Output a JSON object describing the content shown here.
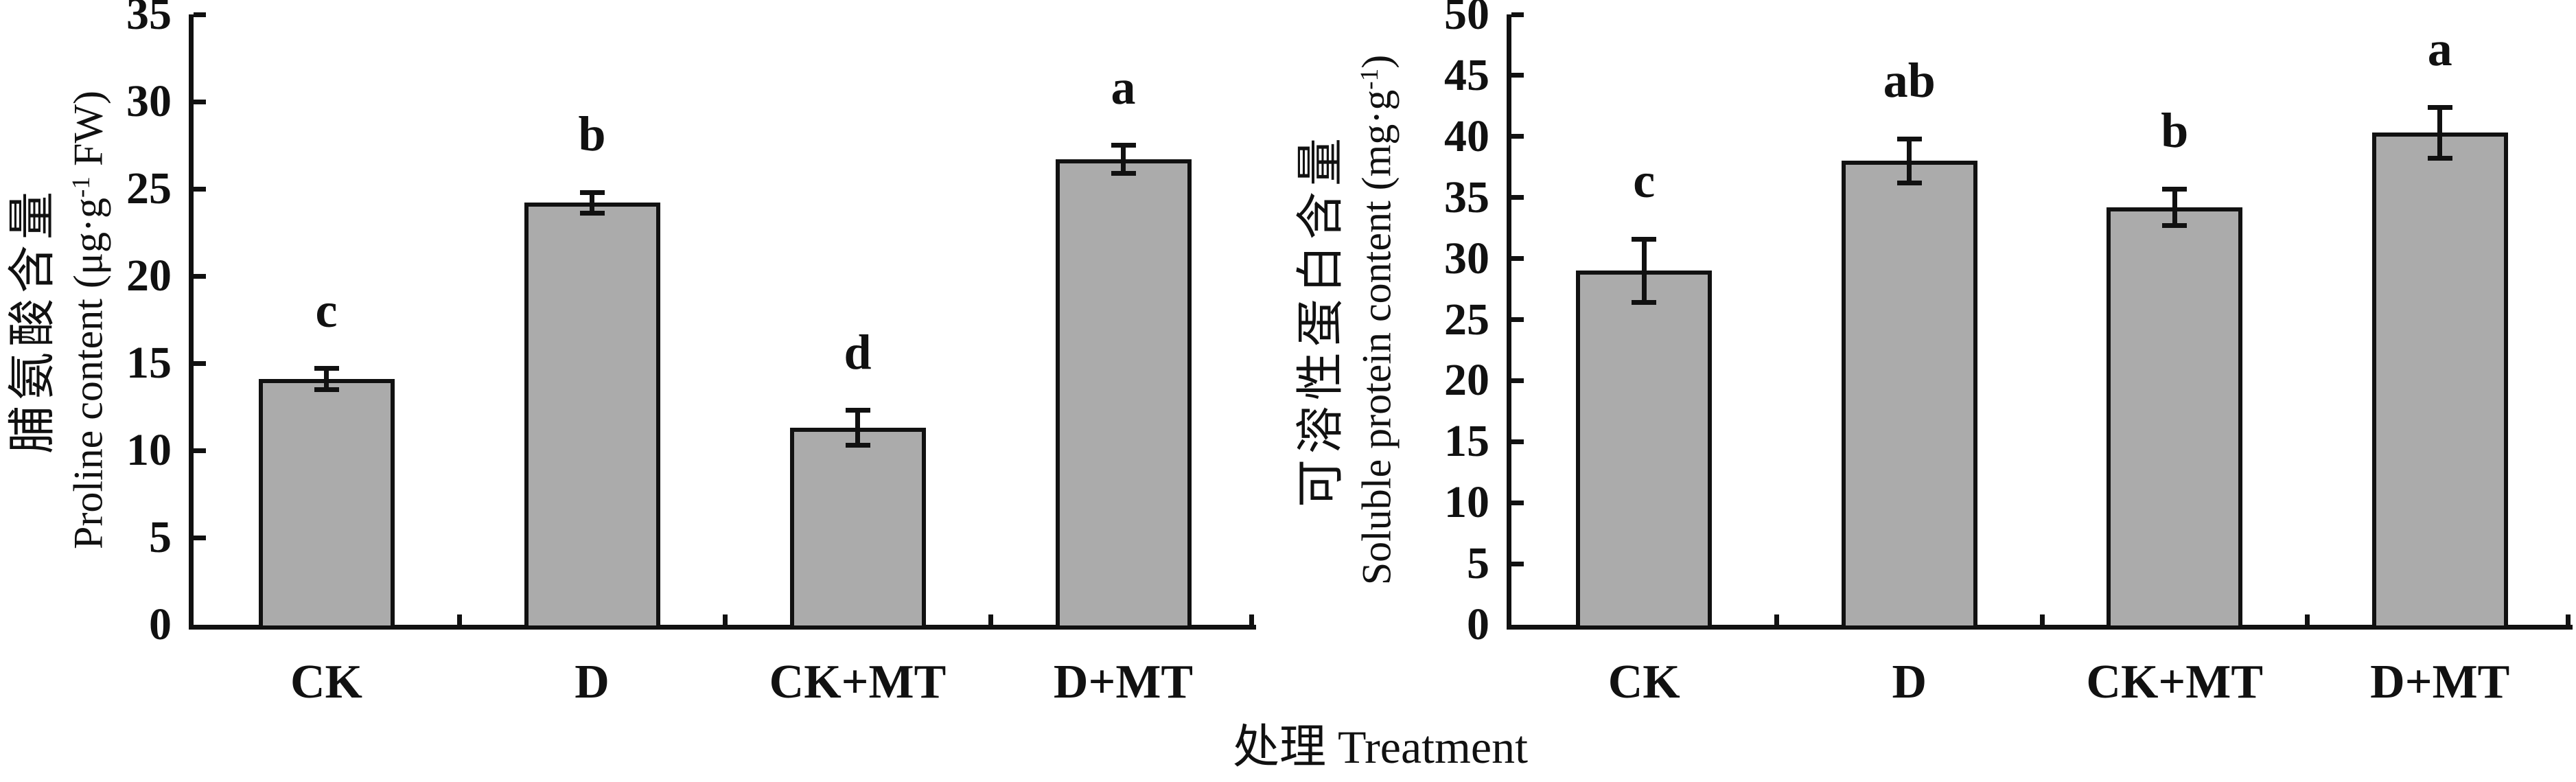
{
  "figure": {
    "background": "#ffffff",
    "x_axis_title": "处理 Treatment",
    "axis_color": "#111111"
  },
  "chart_data": [
    {
      "type": "bar",
      "panel": "left",
      "title": "",
      "ylabel_zh": "脯氨酸含量",
      "ylabel_en_pre": "Proline content (μg·g",
      "ylabel_en_sup": "-1",
      "ylabel_en_post": " FW)",
      "xlabel": "处理 Treatment",
      "categories": [
        "CK",
        "D",
        "CK+MT",
        "D+MT"
      ],
      "values": [
        14.1,
        24.2,
        11.3,
        26.7
      ],
      "errors": [
        0.6,
        0.6,
        1.0,
        0.8
      ],
      "sig_letters": [
        "c",
        "b",
        "d",
        "a"
      ],
      "ylim": [
        0,
        35
      ],
      "ytick_step": 5,
      "grid": false,
      "legend_position": "none",
      "bar_color": "#ababab",
      "bar_edge_color": "#111111"
    },
    {
      "type": "bar",
      "panel": "right",
      "title": "",
      "ylabel_zh": "可溶性蛋白含量",
      "ylabel_en_pre": "Soluble protein content (mg·g",
      "ylabel_en_sup": "-1",
      "ylabel_en_post": ")",
      "xlabel": "处理 Treatment",
      "categories": [
        "CK",
        "D",
        "CK+MT",
        "D+MT"
      ],
      "values": [
        29.0,
        38.0,
        34.2,
        40.3
      ],
      "errors": [
        2.6,
        1.8,
        1.5,
        2.1
      ],
      "sig_letters": [
        "c",
        "ab",
        "b",
        "a"
      ],
      "ylim": [
        0,
        50
      ],
      "ytick_step": 5,
      "grid": false,
      "legend_position": "none",
      "bar_color": "#ababab",
      "bar_edge_color": "#111111"
    }
  ]
}
